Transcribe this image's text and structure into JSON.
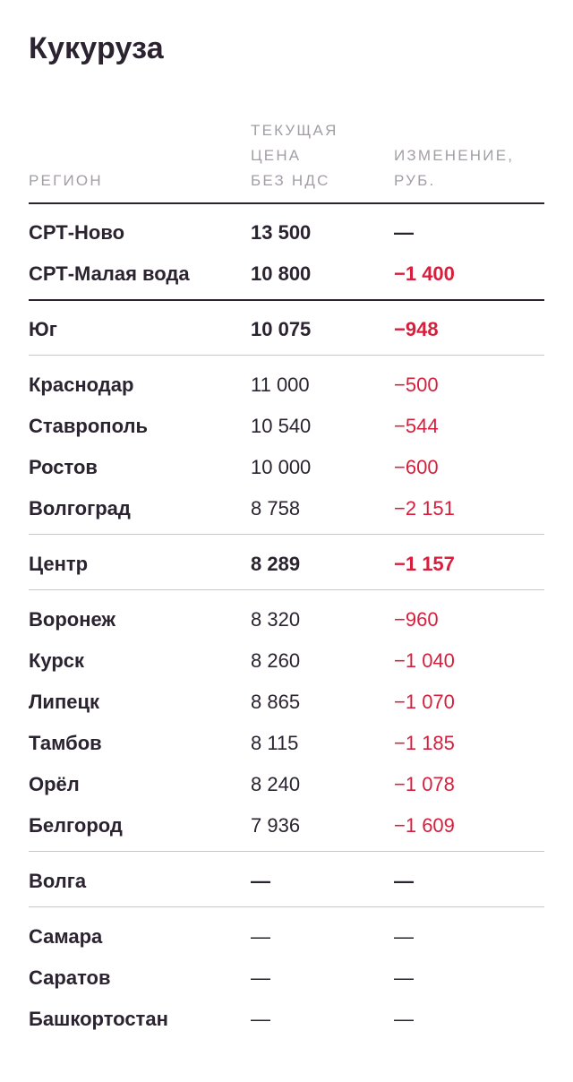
{
  "title": "Кукуруза",
  "columns": {
    "region": "РЕГИОН",
    "price": "ТЕКУЩАЯ\nЦЕНА\nБЕЗ НДС",
    "change": "ИЗМЕНЕНИЕ,\nРУБ."
  },
  "rows": [
    {
      "region": "СРТ-Ново",
      "price": "13 500",
      "change": "—"
    },
    {
      "region": "СРТ-Малая вода",
      "price": "10 800",
      "change": "−1 400"
    },
    {
      "region": "Юг",
      "price": "10 075",
      "change": "−948"
    },
    {
      "region": "Краснодар",
      "price": "11 000",
      "change": "−500"
    },
    {
      "region": "Ставрополь",
      "price": "10 540",
      "change": "−544"
    },
    {
      "region": "Ростов",
      "price": "10 000",
      "change": "−600"
    },
    {
      "region": "Волгоград",
      "price": "8 758",
      "change": "−2 151"
    },
    {
      "region": "Центр",
      "price": "8 289",
      "change": "−1 157"
    },
    {
      "region": "Воронеж",
      "price": "8 320",
      "change": "−960"
    },
    {
      "region": "Курск",
      "price": "8 260",
      "change": "−1 040"
    },
    {
      "region": "Липецк",
      "price": "8 865",
      "change": "−1 070"
    },
    {
      "region": "Тамбов",
      "price": "8 115",
      "change": "−1 185"
    },
    {
      "region": "Орёл",
      "price": "8 240",
      "change": "−1 078"
    },
    {
      "region": "Белгород",
      "price": "7 936",
      "change": "−1 609"
    },
    {
      "region": "Волга",
      "price": "—",
      "change": "—"
    },
    {
      "region": "Самара",
      "price": "—",
      "change": "—"
    },
    {
      "region": "Саратов",
      "price": "—",
      "change": "—"
    },
    {
      "region": "Башкортостан",
      "price": "—",
      "change": "—"
    }
  ]
}
